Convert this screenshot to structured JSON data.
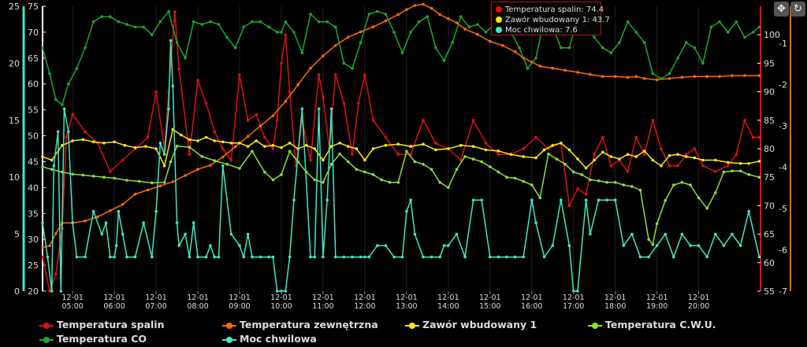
{
  "chart_data": {
    "type": "line",
    "x_labels": [
      [
        "12-01",
        "05:00"
      ],
      [
        "12-01",
        "06:00"
      ],
      [
        "12-01",
        "07:00"
      ],
      [
        "12-01",
        "08:00"
      ],
      [
        "12-01",
        "09:00"
      ],
      [
        "12-01",
        "10:00"
      ],
      [
        "12-01",
        "11:00"
      ],
      [
        "12-01",
        "12:00"
      ],
      [
        "12-01",
        "13:00"
      ],
      [
        "12-01",
        "14:00"
      ],
      [
        "12-01",
        "15:00"
      ],
      [
        "12-01",
        "16:00"
      ],
      [
        "12-01",
        "17:00"
      ],
      [
        "12-01",
        "18:00"
      ],
      [
        "12-01",
        "19:00"
      ],
      [
        "12-01",
        "20:00"
      ]
    ],
    "x_range": [
      4.28,
      21.48
    ],
    "axes": {
      "a1": {
        "color": "#3fe8c4",
        "min": 0,
        "max": 25,
        "ticks": [
          0,
          5,
          10,
          15,
          20,
          25
        ]
      },
      "a2": {
        "color": "#d4d4d4",
        "min": 20,
        "max": 75,
        "ticks": [
          20,
          25,
          30,
          35,
          40,
          45,
          50,
          55,
          60,
          65,
          70,
          75
        ]
      },
      "a3": {
        "color": "#d4d4d4",
        "min": 55,
        "max": 105,
        "ticks": [
          55,
          60,
          65,
          70,
          75,
          80,
          85,
          90,
          95,
          100
        ]
      },
      "a4": {
        "color": "#ff6a00",
        "min": -7,
        "max": -0.1,
        "ticks": [
          -7,
          -6,
          -5,
          -4,
          -3,
          -2,
          -1
        ]
      }
    },
    "series": [
      {
        "name": "Temperatura spalin",
        "color": "#e01010",
        "axis": "a3",
        "x": [
          4.28,
          4.45,
          4.6,
          4.75,
          4.85,
          5.0,
          5.3,
          5.6,
          5.9,
          6.2,
          6.5,
          6.8,
          7.0,
          7.2,
          7.3,
          7.45,
          7.55,
          7.8,
          8.0,
          8.2,
          8.4,
          8.6,
          8.8,
          9.0,
          9.2,
          9.4,
          9.6,
          9.8,
          9.9,
          10.0,
          10.1,
          10.2,
          10.35,
          10.5,
          10.7,
          10.9,
          11.0,
          11.15,
          11.3,
          11.5,
          11.7,
          11.85,
          12.0,
          12.2,
          12.5,
          12.8,
          13.1,
          13.4,
          13.7,
          14.0,
          14.3,
          14.6,
          14.9,
          15.2,
          15.5,
          15.8,
          16.1,
          16.4,
          16.7,
          16.9,
          17.1,
          17.3,
          17.5,
          17.7,
          17.9,
          18.1,
          18.3,
          18.5,
          18.7,
          18.9,
          19.1,
          19.3,
          19.5,
          19.7,
          19.9,
          20.1,
          20.4,
          20.7,
          20.9,
          21.1,
          21.3,
          21.45
        ],
        "y": [
          61,
          55,
          58,
          66,
          82,
          86,
          83,
          81,
          76,
          78,
          80,
          82,
          90,
          80,
          90,
          104,
          94,
          79,
          92,
          88,
          83,
          80,
          78,
          93,
          85,
          86,
          82,
          80,
          85,
          95,
          100,
          90,
          77,
          85,
          78,
          93,
          89,
          80,
          93,
          88,
          79,
          88,
          93,
          85,
          82,
          79,
          79,
          85,
          81,
          80,
          78,
          85,
          81,
          79,
          79,
          80,
          82,
          80,
          81,
          70,
          73,
          72,
          79,
          82,
          77,
          78,
          76,
          82,
          79,
          85,
          80,
          77,
          77,
          79,
          80,
          77,
          76,
          77,
          79,
          85,
          82,
          82
        ]
      },
      {
        "name": "Temperatura zewnętrzna",
        "color": "#ff6a00",
        "axis": "a4",
        "x": [
          4.28,
          4.45,
          4.6,
          4.75,
          5.0,
          5.3,
          5.6,
          5.9,
          6.2,
          6.5,
          6.8,
          7.1,
          7.4,
          7.7,
          8.0,
          8.3,
          8.6,
          8.9,
          9.2,
          9.5,
          9.8,
          10.1,
          10.4,
          10.7,
          11.0,
          11.3,
          11.6,
          11.9,
          12.2,
          12.5,
          12.8,
          13.0,
          13.2,
          13.4,
          13.6,
          13.8,
          14.0,
          14.2,
          14.4,
          14.7,
          15.0,
          15.3,
          15.6,
          15.8,
          16.0,
          16.2,
          16.5,
          16.8,
          17.1,
          17.4,
          17.7,
          18.0,
          18.3,
          18.5,
          18.7,
          19.0,
          19.3,
          19.6,
          19.9,
          20.2,
          20.5,
          20.8,
          21.1,
          21.45
        ],
        "y": [
          -5.95,
          -5.9,
          -5.6,
          -5.35,
          -5.35,
          -5.3,
          -5.2,
          -5.05,
          -4.9,
          -4.65,
          -4.55,
          -4.45,
          -4.35,
          -4.2,
          -4.05,
          -3.95,
          -3.75,
          -3.5,
          -3.25,
          -3.0,
          -2.75,
          -2.4,
          -2.0,
          -1.6,
          -1.3,
          -1.05,
          -0.85,
          -0.72,
          -0.6,
          -0.45,
          -0.3,
          -0.18,
          -0.08,
          -0.05,
          -0.15,
          -0.3,
          -0.4,
          -0.5,
          -0.65,
          -0.78,
          -0.95,
          -1.05,
          -1.2,
          -1.35,
          -1.45,
          -1.55,
          -1.6,
          -1.65,
          -1.7,
          -1.75,
          -1.8,
          -1.8,
          -1.82,
          -1.8,
          -1.85,
          -1.88,
          -1.85,
          -1.82,
          -1.8,
          -1.8,
          -1.8,
          -1.78,
          -1.78,
          -1.78
        ]
      },
      {
        "name": "Zawór wbudowany 1",
        "color": "#ffe70e",
        "axis": "a1",
        "x": [
          4.28,
          4.5,
          4.75,
          5.0,
          5.25,
          5.5,
          5.75,
          6.0,
          6.25,
          6.5,
          6.75,
          7.0,
          7.2,
          7.4,
          7.6,
          7.8,
          8.0,
          8.2,
          8.4,
          8.6,
          8.8,
          9.0,
          9.2,
          9.4,
          9.6,
          9.8,
          10.0,
          10.2,
          10.4,
          10.6,
          10.8,
          11.0,
          11.2,
          11.4,
          11.6,
          11.8,
          12.0,
          12.2,
          12.5,
          12.8,
          13.1,
          13.4,
          13.7,
          14.0,
          14.3,
          14.6,
          14.9,
          15.2,
          15.5,
          15.8,
          16.1,
          16.3,
          16.5,
          16.7,
          16.9,
          17.1,
          17.3,
          17.5,
          17.7,
          17.9,
          18.1,
          18.3,
          18.5,
          18.7,
          18.9,
          19.1,
          19.3,
          19.5,
          19.7,
          19.9,
          20.1,
          20.4,
          20.7,
          21.0,
          21.2,
          21.45
        ],
        "y": [
          11.8,
          11.5,
          12.8,
          13.2,
          13.3,
          13.1,
          13.0,
          13.1,
          12.8,
          12.6,
          12.7,
          12.5,
          11.0,
          14.2,
          13.7,
          13.3,
          13.2,
          13.5,
          13.2,
          13.1,
          13.0,
          13.0,
          12.7,
          13.2,
          12.7,
          12.8,
          12.6,
          13.0,
          12.5,
          12.8,
          12.5,
          11.5,
          12.7,
          13.0,
          12.7,
          12.5,
          11.5,
          12.5,
          12.8,
          12.9,
          12.7,
          12.9,
          12.4,
          12.5,
          12.8,
          12.7,
          12.4,
          12.3,
          12.0,
          11.8,
          11.7,
          12.4,
          12.8,
          13.0,
          12.4,
          11.6,
          10.8,
          11.5,
          12.2,
          11.8,
          11.6,
          12.0,
          11.8,
          12.3,
          11.5,
          11.0,
          11.9,
          12.0,
          11.8,
          11.7,
          11.5,
          11.5,
          11.3,
          11.2,
          11.2,
          11.4
        ]
      },
      {
        "name": "Temperatura C.W.U.",
        "color": "#8ae234",
        "axis": "a2",
        "x": [
          4.28,
          4.5,
          4.75,
          5.0,
          5.25,
          5.5,
          5.75,
          6.0,
          6.3,
          6.6,
          6.9,
          7.2,
          7.35,
          7.5,
          7.8,
          8.1,
          8.4,
          8.7,
          9.0,
          9.3,
          9.6,
          9.8,
          10.0,
          10.2,
          10.4,
          10.6,
          10.8,
          11.0,
          11.2,
          11.4,
          11.6,
          11.8,
          12.0,
          12.2,
          12.4,
          12.6,
          12.8,
          13.0,
          13.2,
          13.4,
          13.6,
          13.8,
          14.0,
          14.2,
          14.4,
          14.6,
          14.8,
          15.0,
          15.2,
          15.4,
          15.6,
          15.8,
          16.0,
          16.2,
          16.4,
          16.6,
          16.8,
          17.0,
          17.2,
          17.4,
          17.6,
          17.8,
          18.0,
          18.2,
          18.4,
          18.6,
          18.8,
          18.9,
          19.0,
          19.2,
          19.4,
          19.6,
          19.8,
          20.0,
          20.2,
          20.4,
          20.6,
          20.8,
          21.0,
          21.2,
          21.45
        ],
        "y": [
          44,
          43.5,
          43,
          42.6,
          42.4,
          42.2,
          42,
          41.8,
          41.4,
          41.2,
          40.9,
          41,
          45,
          48,
          47.8,
          46,
          45.2,
          44.5,
          43.7,
          47,
          43,
          41.5,
          42.5,
          47,
          45,
          43,
          41.5,
          41,
          44.5,
          46.5,
          45,
          43.5,
          43,
          42.5,
          41.5,
          41,
          41,
          47,
          45,
          44.5,
          43.5,
          41,
          40,
          43.5,
          46,
          45.5,
          45,
          44,
          43,
          42,
          41.8,
          41.2,
          40.5,
          38,
          46.5,
          45.5,
          44.5,
          43,
          42.5,
          41.5,
          41.3,
          41,
          41,
          40.5,
          40.2,
          39.5,
          30,
          29,
          33,
          37.5,
          40.5,
          41,
          40.5,
          38,
          36,
          39,
          43,
          43.2,
          43.2,
          42.5,
          42
        ]
      },
      {
        "name": "Temperatura CO",
        "color": "#1aa82a",
        "axis": "a2",
        "x": [
          4.28,
          4.45,
          4.6,
          4.75,
          4.9,
          5.1,
          5.3,
          5.5,
          5.7,
          5.9,
          6.1,
          6.3,
          6.5,
          6.7,
          6.9,
          7.1,
          7.3,
          7.5,
          7.7,
          7.9,
          8.1,
          8.3,
          8.5,
          8.7,
          8.9,
          9.1,
          9.3,
          9.5,
          9.7,
          9.9,
          10.0,
          10.1,
          10.3,
          10.5,
          10.7,
          10.9,
          11.1,
          11.3,
          11.5,
          11.7,
          11.9,
          12.1,
          12.3,
          12.5,
          12.7,
          12.9,
          13.1,
          13.3,
          13.5,
          13.7,
          13.9,
          14.1,
          14.3,
          14.5,
          14.7,
          14.9,
          15.1,
          15.3,
          15.5,
          15.7,
          15.9,
          16.1,
          16.3,
          16.5,
          16.7,
          16.9,
          17.1,
          17.3,
          17.5,
          17.7,
          17.9,
          18.1,
          18.3,
          18.5,
          18.7,
          18.9,
          19.1,
          19.3,
          19.5,
          19.7,
          19.9,
          20.1,
          20.3,
          20.5,
          20.7,
          20.9,
          21.1,
          21.3,
          21.45
        ],
        "y": [
          67,
          62,
          57,
          56,
          60,
          63,
          67,
          72,
          73,
          73,
          72,
          71.5,
          71,
          71,
          69.5,
          72,
          74,
          68,
          65,
          72,
          71.5,
          72,
          71.5,
          69,
          67,
          71,
          72,
          72,
          71,
          70,
          70,
          72,
          70,
          66,
          73.5,
          72,
          72,
          71,
          64,
          63,
          68,
          73.5,
          74,
          73.5,
          70,
          66,
          70,
          72,
          73,
          67,
          64.5,
          68,
          73,
          71,
          71.5,
          70,
          71.5,
          73,
          70,
          67,
          63,
          65,
          72.5,
          71,
          67,
          67,
          73,
          71,
          69,
          67,
          66,
          68,
          72,
          70,
          68,
          62,
          61,
          62,
          65,
          68,
          67,
          64,
          71,
          72,
          70,
          72,
          69,
          70,
          71
        ]
      },
      {
        "name": "Moc chwilowa",
        "color": "#3fe8c4",
        "axis": "a1",
        "x": [
          4.28,
          4.4,
          4.5,
          4.55,
          4.65,
          4.72,
          4.8,
          4.9,
          5.0,
          5.1,
          5.3,
          5.5,
          5.7,
          5.8,
          5.9,
          6.0,
          6.05,
          6.1,
          6.2,
          6.3,
          6.5,
          6.7,
          6.9,
          7.0,
          7.1,
          7.2,
          7.3,
          7.35,
          7.4,
          7.5,
          7.55,
          7.7,
          7.8,
          7.9,
          8.0,
          8.2,
          8.3,
          8.4,
          8.5,
          8.6,
          8.8,
          9.0,
          9.1,
          9.2,
          9.3,
          9.5,
          9.7,
          9.8,
          9.9,
          10.0,
          10.1,
          10.2,
          10.3,
          10.5,
          10.7,
          10.8,
          10.9,
          11.0,
          11.1,
          11.2,
          11.3,
          11.5,
          11.7,
          11.9,
          12.0,
          12.1,
          12.3,
          12.5,
          12.7,
          12.9,
          13.0,
          13.1,
          13.2,
          13.4,
          13.6,
          13.8,
          13.9,
          14.0,
          14.2,
          14.4,
          14.6,
          14.8,
          15.0,
          15.2,
          15.4,
          15.6,
          15.8,
          16.0,
          16.1,
          16.3,
          16.5,
          16.7,
          16.9,
          17.0,
          17.1,
          17.3,
          17.4,
          17.6,
          17.8,
          18.0,
          18.2,
          18.4,
          18.6,
          18.8,
          19.0,
          19.2,
          19.4,
          19.6,
          19.8,
          20.0,
          20.2,
          20.4,
          20.6,
          20.8,
          21.0,
          21.2,
          21.45
        ],
        "y": [
          6,
          3,
          0,
          11,
          14,
          0,
          16,
          14,
          6,
          3,
          3,
          7,
          5,
          6,
          3,
          3,
          4,
          7,
          5,
          3,
          3,
          6,
          3,
          7,
          13,
          12,
          16,
          22,
          18,
          6,
          4,
          5,
          3,
          6,
          3,
          3,
          4,
          3,
          3,
          11,
          5,
          4,
          3,
          5,
          3,
          3,
          3,
          3,
          0,
          0,
          0,
          3,
          8,
          16,
          3,
          3,
          16,
          3,
          8,
          16,
          3,
          3,
          3,
          3,
          3,
          3,
          4,
          4,
          3,
          3,
          7,
          8,
          5,
          3,
          3,
          3,
          4,
          4,
          5,
          3,
          8,
          8,
          3,
          3,
          3,
          3,
          3,
          8,
          6,
          3,
          4,
          8,
          4,
          0,
          0,
          8,
          5,
          8,
          8,
          8,
          4,
          5,
          3,
          3,
          4,
          5,
          3,
          5,
          4,
          4,
          3,
          5,
          4,
          5,
          4,
          7,
          3
        ]
      }
    ]
  },
  "tooltip": {
    "rows": [
      {
        "label": "Temperatura spalin: 74.4",
        "color": "#e01010"
      },
      {
        "label": "Zawór wbudowany 1: 43.7",
        "color": "#ffe70e"
      },
      {
        "label": "Moc chwilowa: 7.6",
        "color": "#3fe8c4"
      }
    ]
  },
  "toolbar": {
    "move_icon": "✥",
    "reset_icon": "↻"
  },
  "legend_layout": [
    "Temperatura spalin",
    "Temperatura zewnętrzna",
    "Zawór wbudowany 1",
    "Temperatura C.W.U.",
    "Temperatura CO",
    "Moc chwilowa"
  ]
}
